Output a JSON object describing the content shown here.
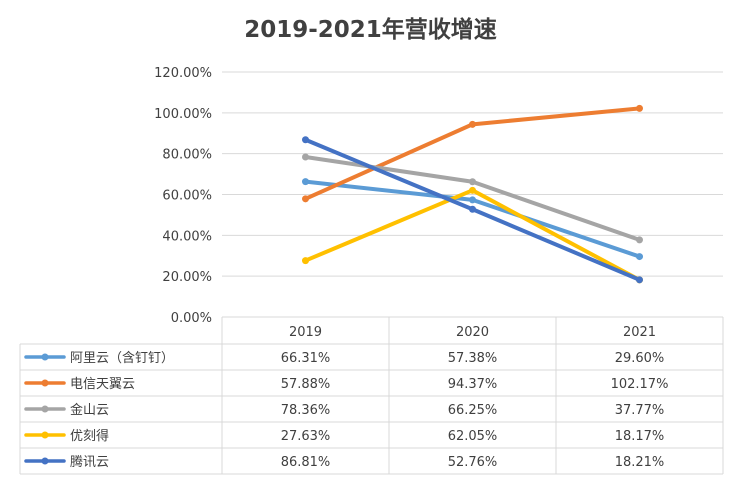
{
  "chart_data": {
    "type": "line",
    "title": "2019-2021年营收增速",
    "categories": [
      "2019",
      "2020",
      "2021"
    ],
    "y_ticks": [
      "0.00%",
      "20.00%",
      "40.00%",
      "60.00%",
      "80.00%",
      "100.00%",
      "120.00%"
    ],
    "ylim": [
      0,
      120
    ],
    "grid": true,
    "legend": "data-table",
    "series": [
      {
        "name": "阿里云（含钉钉）",
        "color": "#5b9bd5",
        "values": [
          66.31,
          57.38,
          29.6
        ],
        "labels": [
          "66.31%",
          "57.38%",
          "29.60%"
        ]
      },
      {
        "name": "电信天翼云",
        "color": "#ed7d31",
        "values": [
          57.88,
          94.37,
          102.17
        ],
        "labels": [
          "57.88%",
          "94.37%",
          "102.17%"
        ]
      },
      {
        "name": "金山云",
        "color": "#a5a5a5",
        "values": [
          78.36,
          66.25,
          37.77
        ],
        "labels": [
          "78.36%",
          "66.25%",
          "37.77%"
        ]
      },
      {
        "name": "优刻得",
        "color": "#ffc000",
        "values": [
          27.63,
          62.05,
          18.17
        ],
        "labels": [
          "27.63%",
          "62.05%",
          "18.17%"
        ]
      },
      {
        "name": "腾讯云",
        "color": "#4472c4",
        "values": [
          86.81,
          52.76,
          18.21
        ],
        "labels": [
          "86.81%",
          "52.76%",
          "18.21%"
        ]
      }
    ]
  }
}
